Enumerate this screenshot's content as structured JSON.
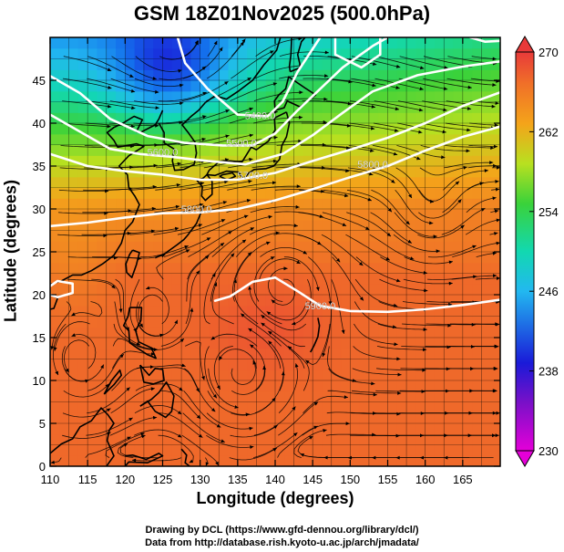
{
  "title": "GSM 18Z01Nov2025 (500.0hPa)",
  "xlabel": "Longitude (degrees)",
  "ylabel": "Latitude  (degrees)",
  "credits": [
    "Drawing by DCL (https://www.gfd-dennou.org/library/dcl/)",
    "Data from http://database.rish.kyoto-u.ac.jp/arch/jmadata/"
  ],
  "map": {
    "lon_range": [
      110,
      170
    ],
    "lat_range": [
      0,
      50
    ],
    "lon_ticks": [
      110,
      115,
      120,
      125,
      130,
      135,
      140,
      145,
      150,
      155,
      160,
      165
    ],
    "lat_ticks": [
      0,
      5,
      10,
      15,
      20,
      25,
      30,
      35,
      40,
      45
    ],
    "grid_step_deg": 2.5,
    "field": "temperature",
    "colorbar": {
      "min": 230,
      "max": 270,
      "labels": [
        "270",
        "262",
        "254",
        "246",
        "238",
        "230"
      ],
      "label_values": [
        270,
        262,
        254,
        246,
        238,
        230
      ]
    },
    "contours": [
      {
        "label": "5400.0",
        "lon": 138,
        "lat": 40.5
      },
      {
        "label": "5500.0",
        "lon": 135.5,
        "lat": 37.3
      },
      {
        "label": "5600.0",
        "lon": 125,
        "lat": 36.2
      },
      {
        "label": "5700.0",
        "lon": 137,
        "lat": 33.5
      },
      {
        "label": "5800.0",
        "lon": 153,
        "lat": 34.8
      },
      {
        "label": "5800.0",
        "lon": 129.5,
        "lat": 29.6
      },
      {
        "label": "5900.0",
        "lon": 146,
        "lat": 18.3
      }
    ],
    "coast_color": "#000000",
    "contour_color": "#ffffff"
  }
}
